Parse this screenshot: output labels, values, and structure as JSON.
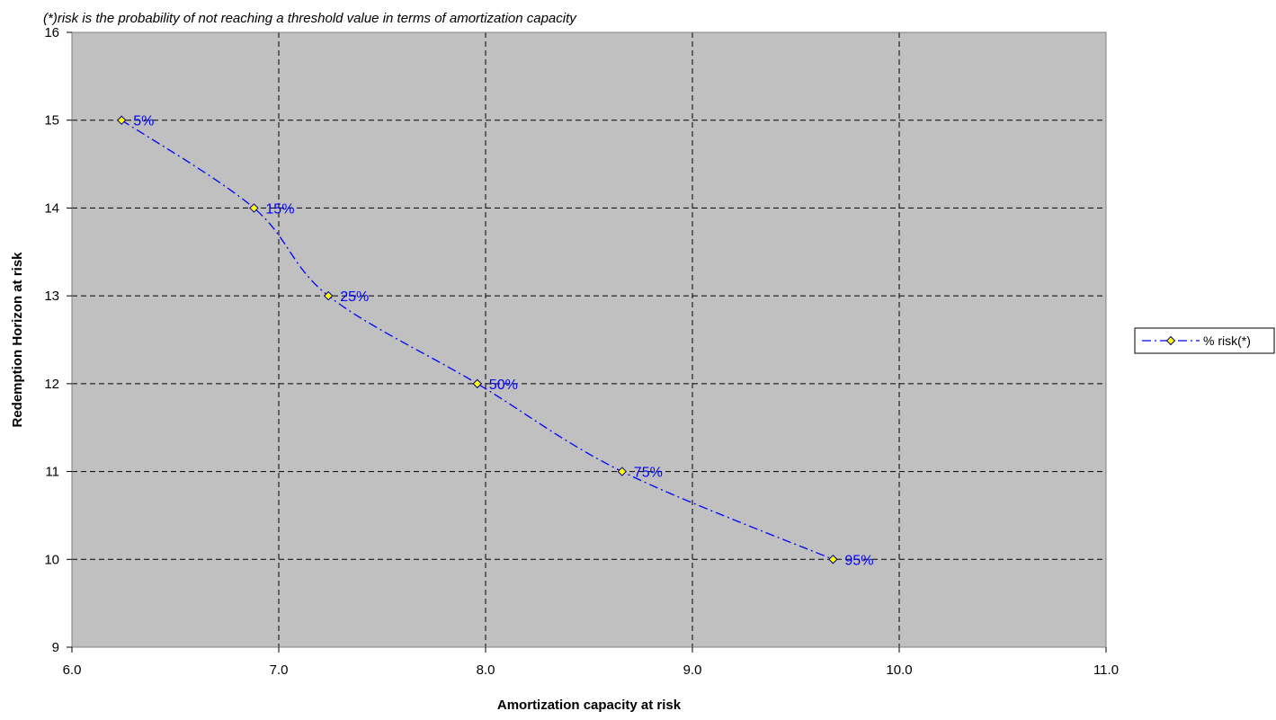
{
  "chart_data": {
    "type": "scatter",
    "subtitle": "(*)risk is the probability of not reaching a threshold value in terms of amortization capacity",
    "xlabel": "Amortization capacity at risk",
    "ylabel": "Redemption Horizon at risk",
    "xlim": [
      6.0,
      11.0
    ],
    "ylim": [
      9,
      16
    ],
    "xticks": [
      "6.0",
      "7.0",
      "8.0",
      "9.0",
      "10.0",
      "11.0"
    ],
    "yticks": [
      "9",
      "10",
      "11",
      "12",
      "13",
      "14",
      "15",
      "16"
    ],
    "grid": true,
    "legend_position": "right",
    "plot_background": "#c0c0c0",
    "series": [
      {
        "name": "% risk(*)",
        "color": "#0000ff",
        "marker_fill": "#ffff00",
        "line_style": "dash-dot",
        "marker": "diamond",
        "points": [
          {
            "x": 6.24,
            "y": 15,
            "label": "5%"
          },
          {
            "x": 6.88,
            "y": 14,
            "label": "15%"
          },
          {
            "x": 7.24,
            "y": 13,
            "label": "25%"
          },
          {
            "x": 7.96,
            "y": 12,
            "label": "50%"
          },
          {
            "x": 8.66,
            "y": 11,
            "label": "75%"
          },
          {
            "x": 9.68,
            "y": 10,
            "label": "95%"
          }
        ]
      }
    ]
  }
}
